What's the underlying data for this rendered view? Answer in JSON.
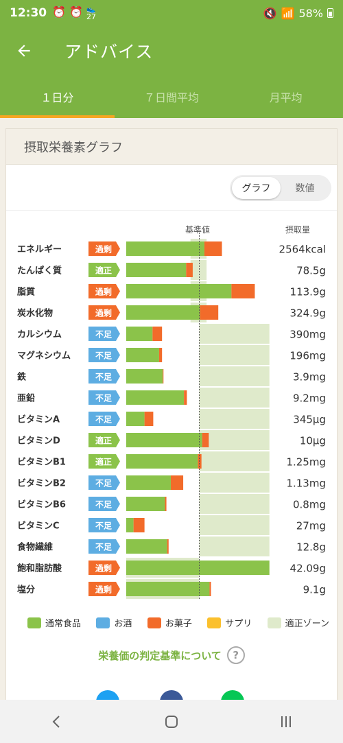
{
  "status_bar": {
    "time": "12:30",
    "left_icons": [
      "alarm-icon",
      "alarm-icon",
      "step-counter-icon"
    ],
    "step_badge": "27",
    "battery": "58%"
  },
  "app_bar": {
    "title": "アドバイス"
  },
  "tabs": [
    {
      "label": "１日分",
      "active": true
    },
    {
      "label": "７日間平均",
      "active": false
    },
    {
      "label": "月平均",
      "active": false
    }
  ],
  "card": {
    "title": "摂取栄養素グラフ",
    "toggle": {
      "graph": "グラフ",
      "numeric": "数値",
      "selected": "graph"
    },
    "columns": {
      "reference": "基準値",
      "intake": "摂取量"
    }
  },
  "chart_data": {
    "type": "bar",
    "orientation": "horizontal",
    "stacked": true,
    "units": "percent of reference value",
    "xlim": [
      0,
      200
    ],
    "reference_line": 100,
    "categories": [
      "エネルギー",
      "たんぱく質",
      "脂質",
      "炭水化物",
      "カルシウム",
      "マグネシウム",
      "鉄",
      "亜鉛",
      "ビタミンA",
      "ビタミンD",
      "ビタミンB1",
      "ビタミンB2",
      "ビタミンB6",
      "ビタミンC",
      "食物繊維",
      "飽和脂肪酸",
      "塩分"
    ],
    "statuses": [
      "過剰",
      "適正",
      "過剰",
      "過剰",
      "不足",
      "不足",
      "不足",
      "不足",
      "不足",
      "適正",
      "適正",
      "不足",
      "不足",
      "不足",
      "不足",
      "過剰",
      "過剰"
    ],
    "intake_labels": [
      "2564kcal",
      "78.5g",
      "113.9g",
      "324.9g",
      "390mg",
      "196mg",
      "3.9mg",
      "9.2mg",
      "345μg",
      "10μg",
      "1.25mg",
      "1.13mg",
      "0.8mg",
      "27mg",
      "12.8g",
      "42.09g",
      "9.1g"
    ],
    "series": [
      {
        "name": "通常食品",
        "color": "#8bc34a",
        "values": [
          107,
          82,
          144,
          101,
          36,
          45,
          50,
          79,
          25,
          104,
          98,
          61,
          53,
          10,
          56,
          196,
          114
        ]
      },
      {
        "name": "お酒",
        "color": "#5dade2",
        "values": [
          0,
          0,
          0,
          0,
          0,
          0,
          0,
          0,
          0,
          0,
          0,
          0,
          0,
          0,
          0,
          0,
          0
        ]
      },
      {
        "name": "お菓子",
        "color": "#f26b2a",
        "values": [
          24,
          9,
          32,
          25,
          13,
          4,
          1,
          4,
          12,
          9,
          5,
          17,
          2,
          15,
          2,
          0,
          2
        ]
      },
      {
        "name": "サプリ",
        "color": "#fbc02d",
        "values": [
          0,
          0,
          0,
          0,
          0,
          0,
          0,
          0,
          0,
          0,
          0,
          0,
          0,
          0,
          0,
          0,
          0
        ]
      }
    ],
    "appropriate_zone": {
      "name": "適正ゾーン",
      "color": "#dfeacb",
      "ranges": [
        [
          88,
          110
        ],
        [
          88,
          110
        ],
        [
          88,
          110
        ],
        [
          88,
          110
        ],
        [
          100,
          196
        ],
        [
          100,
          196
        ],
        [
          100,
          196
        ],
        [
          100,
          196
        ],
        [
          100,
          196
        ],
        [
          100,
          196
        ],
        [
          100,
          196
        ],
        [
          100,
          196
        ],
        [
          100,
          196
        ],
        [
          100,
          196
        ],
        [
          100,
          196
        ],
        [
          0,
          100
        ],
        [
          0,
          100
        ]
      ]
    }
  },
  "status_colors": {
    "過剰": "#f26b2a",
    "適正": "#8bc34a",
    "不足": "#5dade2"
  },
  "legend": [
    {
      "label": "通常食品",
      "color": "#8bc34a"
    },
    {
      "label": "お酒",
      "color": "#5dade2"
    },
    {
      "label": "お菓子",
      "color": "#f26b2a"
    },
    {
      "label": "サプリ",
      "color": "#fbc02d"
    },
    {
      "label": "適正ゾーン",
      "color": "#dfeacb"
    }
  ],
  "criteria_link": "栄養価の判定基準について",
  "share_icons": [
    {
      "name": "twitter-icon",
      "color": "#1da1f2"
    },
    {
      "name": "facebook-icon",
      "color": "#3b5998"
    },
    {
      "name": "line-icon",
      "color": "#06c755"
    }
  ],
  "nav_bar": [
    "back-nav-icon",
    "home-nav-icon",
    "recents-nav-icon"
  ]
}
